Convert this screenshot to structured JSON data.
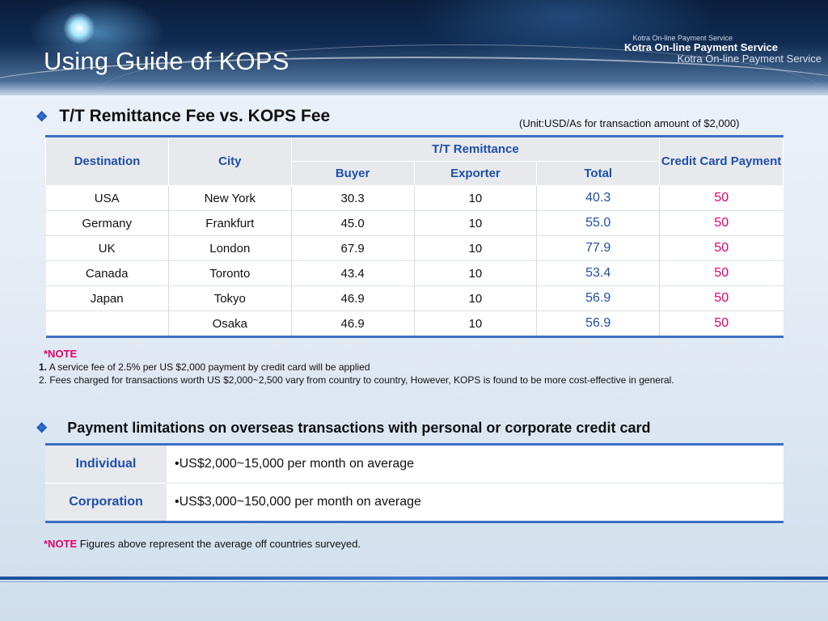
{
  "slide": {
    "title": "Using Guide of KOPS",
    "brand": {
      "line1": "Kotra On-line Payment Service",
      "line2": "Kotra On-line Payment Service",
      "line3": "Kotra On-line Payment Service"
    }
  },
  "section1": {
    "bullet": "❖",
    "heading": "T/T Remittance Fee vs. KOPS Fee",
    "unit_note": "(Unit:USD/As for transaction amount of $2,000)",
    "headers": {
      "destination": "Destination",
      "city": "City",
      "tt_remittance": "T/T Remittance",
      "credit_card": "Credit Card Payment",
      "buyer": "Buyer",
      "exporter": "Exporter",
      "total": "Total"
    },
    "rows": [
      {
        "destination": "USA",
        "city": "New York",
        "buyer": "30.3",
        "exporter": "10",
        "total": "40.3",
        "credit": "50"
      },
      {
        "destination": "Germany",
        "city": "Frankfurt",
        "buyer": "45.0",
        "exporter": "10",
        "total": "55.0",
        "credit": "50"
      },
      {
        "destination": "UK",
        "city": "London",
        "buyer": "67.9",
        "exporter": "10",
        "total": "77.9",
        "credit": "50"
      },
      {
        "destination": "Canada",
        "city": "Toronto",
        "buyer": "43.4",
        "exporter": "10",
        "total": "53.4",
        "credit": "50"
      },
      {
        "destination": "Japan",
        "city": "Tokyo",
        "buyer": "46.9",
        "exporter": "10",
        "total": "56.9",
        "credit": "50"
      },
      {
        "destination": "",
        "city": "Osaka",
        "buyer": "46.9",
        "exporter": "10",
        "total": "56.9",
        "credit": "50"
      }
    ],
    "note": {
      "label": "*NOTE",
      "item1_num": "1.",
      "item1_text": " A service fee of 2.5% per US $2,000 payment by credit card will be applied",
      "item2": "2. Fees charged for transactions worth US $2,000~2,500 vary from country to country, However, KOPS is found to be more cost-effective in general."
    }
  },
  "section2": {
    "bullet": "❖",
    "heading": "Payment limitations on overseas transactions with personal or corporate credit card",
    "rows": [
      {
        "label": "Individual",
        "value": "•US$2,000~15,000 per month on average"
      },
      {
        "label": "Corporation",
        "value": "•US$3,000~150,000 per month on average"
      }
    ],
    "note": {
      "label": "*NOTE",
      "text": " Figures above represent the average off countries surveyed."
    }
  }
}
